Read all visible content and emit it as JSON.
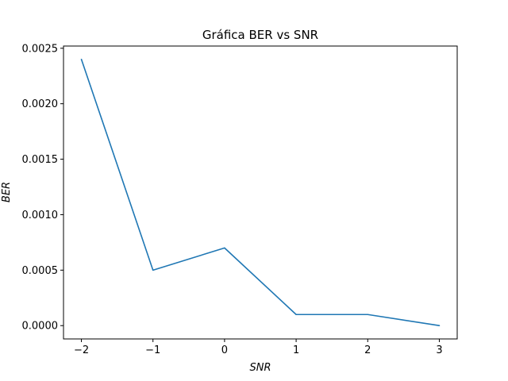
{
  "chart_data": {
    "type": "line",
    "title": "Gráfica BER vs SNR",
    "xlabel": "SNR",
    "ylabel": "BER",
    "x": [
      -2,
      -1,
      0,
      1,
      2,
      3
    ],
    "series": [
      {
        "values": [
          0.0024,
          0.0005,
          0.0007,
          0.0001,
          0.0001,
          0.0
        ],
        "color": "#1f77b4"
      }
    ],
    "xlim": [
      -2.25,
      3.25
    ],
    "ylim": [
      -0.00012,
      0.00252
    ],
    "xticks": [
      -2,
      -1,
      0,
      1,
      2,
      3
    ],
    "xtick_labels": [
      "−2",
      "−1",
      "0",
      "1",
      "2",
      "3"
    ],
    "yticks": [
      0.0,
      0.0005,
      0.001,
      0.0015,
      0.002,
      0.0025
    ],
    "ytick_labels": [
      "0.0000",
      "0.0005",
      "0.0010",
      "0.0015",
      "0.0020",
      "0.0025"
    ],
    "grid": false,
    "legend": false
  }
}
